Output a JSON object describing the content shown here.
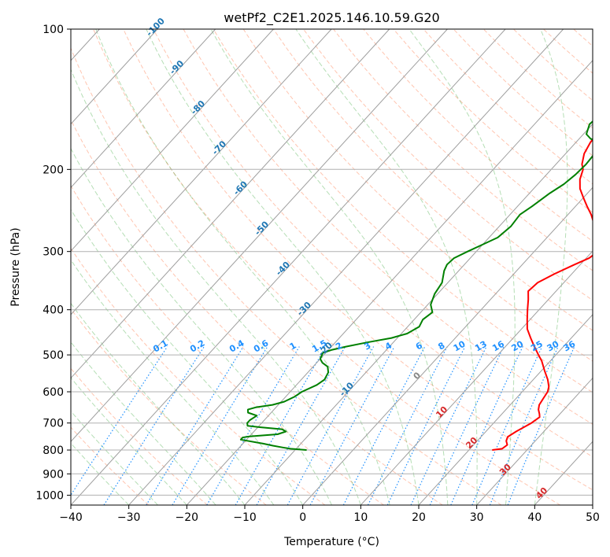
{
  "chart_data": {
    "type": "skew-t",
    "title": "wetPf2_C2E1.2025.146.10.59.G20",
    "xlabel": "Temperature (°C)",
    "ylabel": "Pressure (hPa)",
    "xlim": [
      -40,
      50
    ],
    "ylim": [
      1050,
      100
    ],
    "y_scale": "log",
    "x_ticks": [
      -40,
      -30,
      -20,
      -10,
      0,
      10,
      20,
      30,
      40,
      50
    ],
    "x_tick_labels": [
      "−40",
      "−30",
      "−20",
      "−10",
      "0",
      "10",
      "20",
      "30",
      "40",
      "50"
    ],
    "y_ticks": [
      100,
      200,
      300,
      400,
      500,
      600,
      700,
      800,
      900,
      1000
    ],
    "y_tick_labels": [
      "100",
      "200",
      "300",
      "400",
      "500",
      "600",
      "700",
      "800",
      "900",
      "1000"
    ],
    "grid": true,
    "colors": {
      "temperature": "#ff0000",
      "dewpoint": "#008000",
      "isotherm_label": "#1f77b4",
      "mixing_ratio": "#1e90ff",
      "dry_adiabat": "#ff7f50",
      "moist_adiabat": "#2ca02c",
      "zero_isotherm_label": "#888888",
      "warm_isotherm_label": "#d62728"
    },
    "series": [
      {
        "key": "temperature",
        "points": [
          [
            24.0,
            800
          ],
          [
            25.5,
            795
          ],
          [
            25.8,
            780
          ],
          [
            25.0,
            765
          ],
          [
            24.6,
            750
          ],
          [
            25.2,
            730
          ],
          [
            26.5,
            700
          ],
          [
            27.0,
            680
          ],
          [
            26.5,
            670
          ],
          [
            25.6,
            655
          ],
          [
            25.0,
            640
          ],
          [
            24.7,
            620
          ],
          [
            24.4,
            600
          ],
          [
            23.8,
            585
          ],
          [
            22.5,
            565
          ],
          [
            20.5,
            540
          ],
          [
            18.5,
            515
          ],
          [
            17.0,
            500
          ],
          [
            15.0,
            480
          ],
          [
            13.0,
            460
          ],
          [
            11.0,
            440
          ],
          [
            9.5,
            420
          ],
          [
            8.0,
            400
          ],
          [
            6.5,
            380
          ],
          [
            5.2,
            365
          ],
          [
            5.5,
            350
          ],
          [
            7.0,
            335
          ],
          [
            9.0,
            320
          ],
          [
            10.5,
            310
          ],
          [
            11.0,
            300
          ],
          [
            10.5,
            290
          ],
          [
            9.0,
            280
          ],
          [
            6.5,
            265
          ],
          [
            4.0,
            250
          ],
          [
            2.0,
            240
          ],
          [
            0.0,
            230
          ],
          [
            -2.0,
            220
          ],
          [
            -3.5,
            210
          ],
          [
            -4.5,
            200
          ],
          [
            -5.5,
            195
          ],
          [
            -6.8,
            185
          ],
          [
            -7.5,
            175
          ],
          [
            -7.8,
            165
          ],
          [
            -7.8,
            150
          ],
          [
            -7.5,
            135
          ],
          [
            -7.5,
            125
          ],
          [
            -7.2,
            120
          ],
          [
            -6.5,
            115
          ],
          [
            -5.5,
            110
          ],
          [
            -4.2,
            105
          ],
          [
            -3.0,
            100
          ]
        ]
      },
      {
        "key": "dewpoint",
        "points": [
          [
            -8.0,
            800
          ],
          [
            -11.0,
            795
          ],
          [
            -12.5,
            790
          ],
          [
            -14.5,
            783
          ],
          [
            -16.5,
            775
          ],
          [
            -21.0,
            760
          ],
          [
            -21.0,
            752
          ],
          [
            -20.0,
            748
          ],
          [
            -15.5,
            740
          ],
          [
            -14.5,
            730
          ],
          [
            -15.5,
            722
          ],
          [
            -19.5,
            715
          ],
          [
            -22.0,
            710
          ],
          [
            -22.5,
            700
          ],
          [
            -22.5,
            690
          ],
          [
            -22.0,
            675
          ],
          [
            -24.0,
            665
          ],
          [
            -24.5,
            655
          ],
          [
            -23.5,
            648
          ],
          [
            -21.0,
            640
          ],
          [
            -19.5,
            630
          ],
          [
            -18.5,
            615
          ],
          [
            -18.0,
            600
          ],
          [
            -16.5,
            580
          ],
          [
            -16.0,
            565
          ],
          [
            -16.5,
            545
          ],
          [
            -17.5,
            530
          ],
          [
            -19.0,
            520
          ],
          [
            -20.0,
            510
          ],
          [
            -20.5,
            495
          ],
          [
            -19.5,
            488
          ],
          [
            -17.5,
            480
          ],
          [
            -14.5,
            470
          ],
          [
            -11.0,
            460
          ],
          [
            -9.0,
            450
          ],
          [
            -8.0,
            435
          ],
          [
            -8.5,
            420
          ],
          [
            -8.0,
            405
          ],
          [
            -9.5,
            390
          ],
          [
            -10.5,
            370
          ],
          [
            -11.0,
            350
          ],
          [
            -12.5,
            330
          ],
          [
            -13.0,
            320
          ],
          [
            -12.8,
            310
          ],
          [
            -11.5,
            300
          ],
          [
            -10.0,
            290
          ],
          [
            -8.5,
            280
          ],
          [
            -8.0,
            265
          ],
          [
            -8.3,
            250
          ],
          [
            -7.5,
            240
          ],
          [
            -6.5,
            225
          ],
          [
            -5.5,
            215
          ],
          [
            -5.0,
            205
          ],
          [
            -4.8,
            195
          ],
          [
            -5.0,
            185
          ],
          [
            -5.5,
            175
          ],
          [
            -8.0,
            172
          ],
          [
            -9.5,
            168
          ],
          [
            -10.5,
            160
          ],
          [
            -10.0,
            150
          ],
          [
            -9.0,
            140
          ],
          [
            -8.5,
            130
          ],
          [
            -8.0,
            120
          ],
          [
            -7.5,
            112
          ],
          [
            -6.5,
            105
          ],
          [
            -5.0,
            100
          ]
        ]
      }
    ],
    "isotherm_labels": [
      "-100",
      "-90",
      "-80",
      "-70",
      "-60",
      "-50",
      "-40",
      "-30",
      "-20",
      "-10",
      "0",
      "10",
      "20",
      "30",
      "40"
    ],
    "mixing_ratio_labels": [
      "0.1",
      "0.2",
      "0.4",
      "0.6",
      "1",
      "1.5",
      "2",
      "3",
      "4",
      "6",
      "8",
      "10",
      "13",
      "16",
      "20",
      "25",
      "30",
      "36"
    ]
  }
}
